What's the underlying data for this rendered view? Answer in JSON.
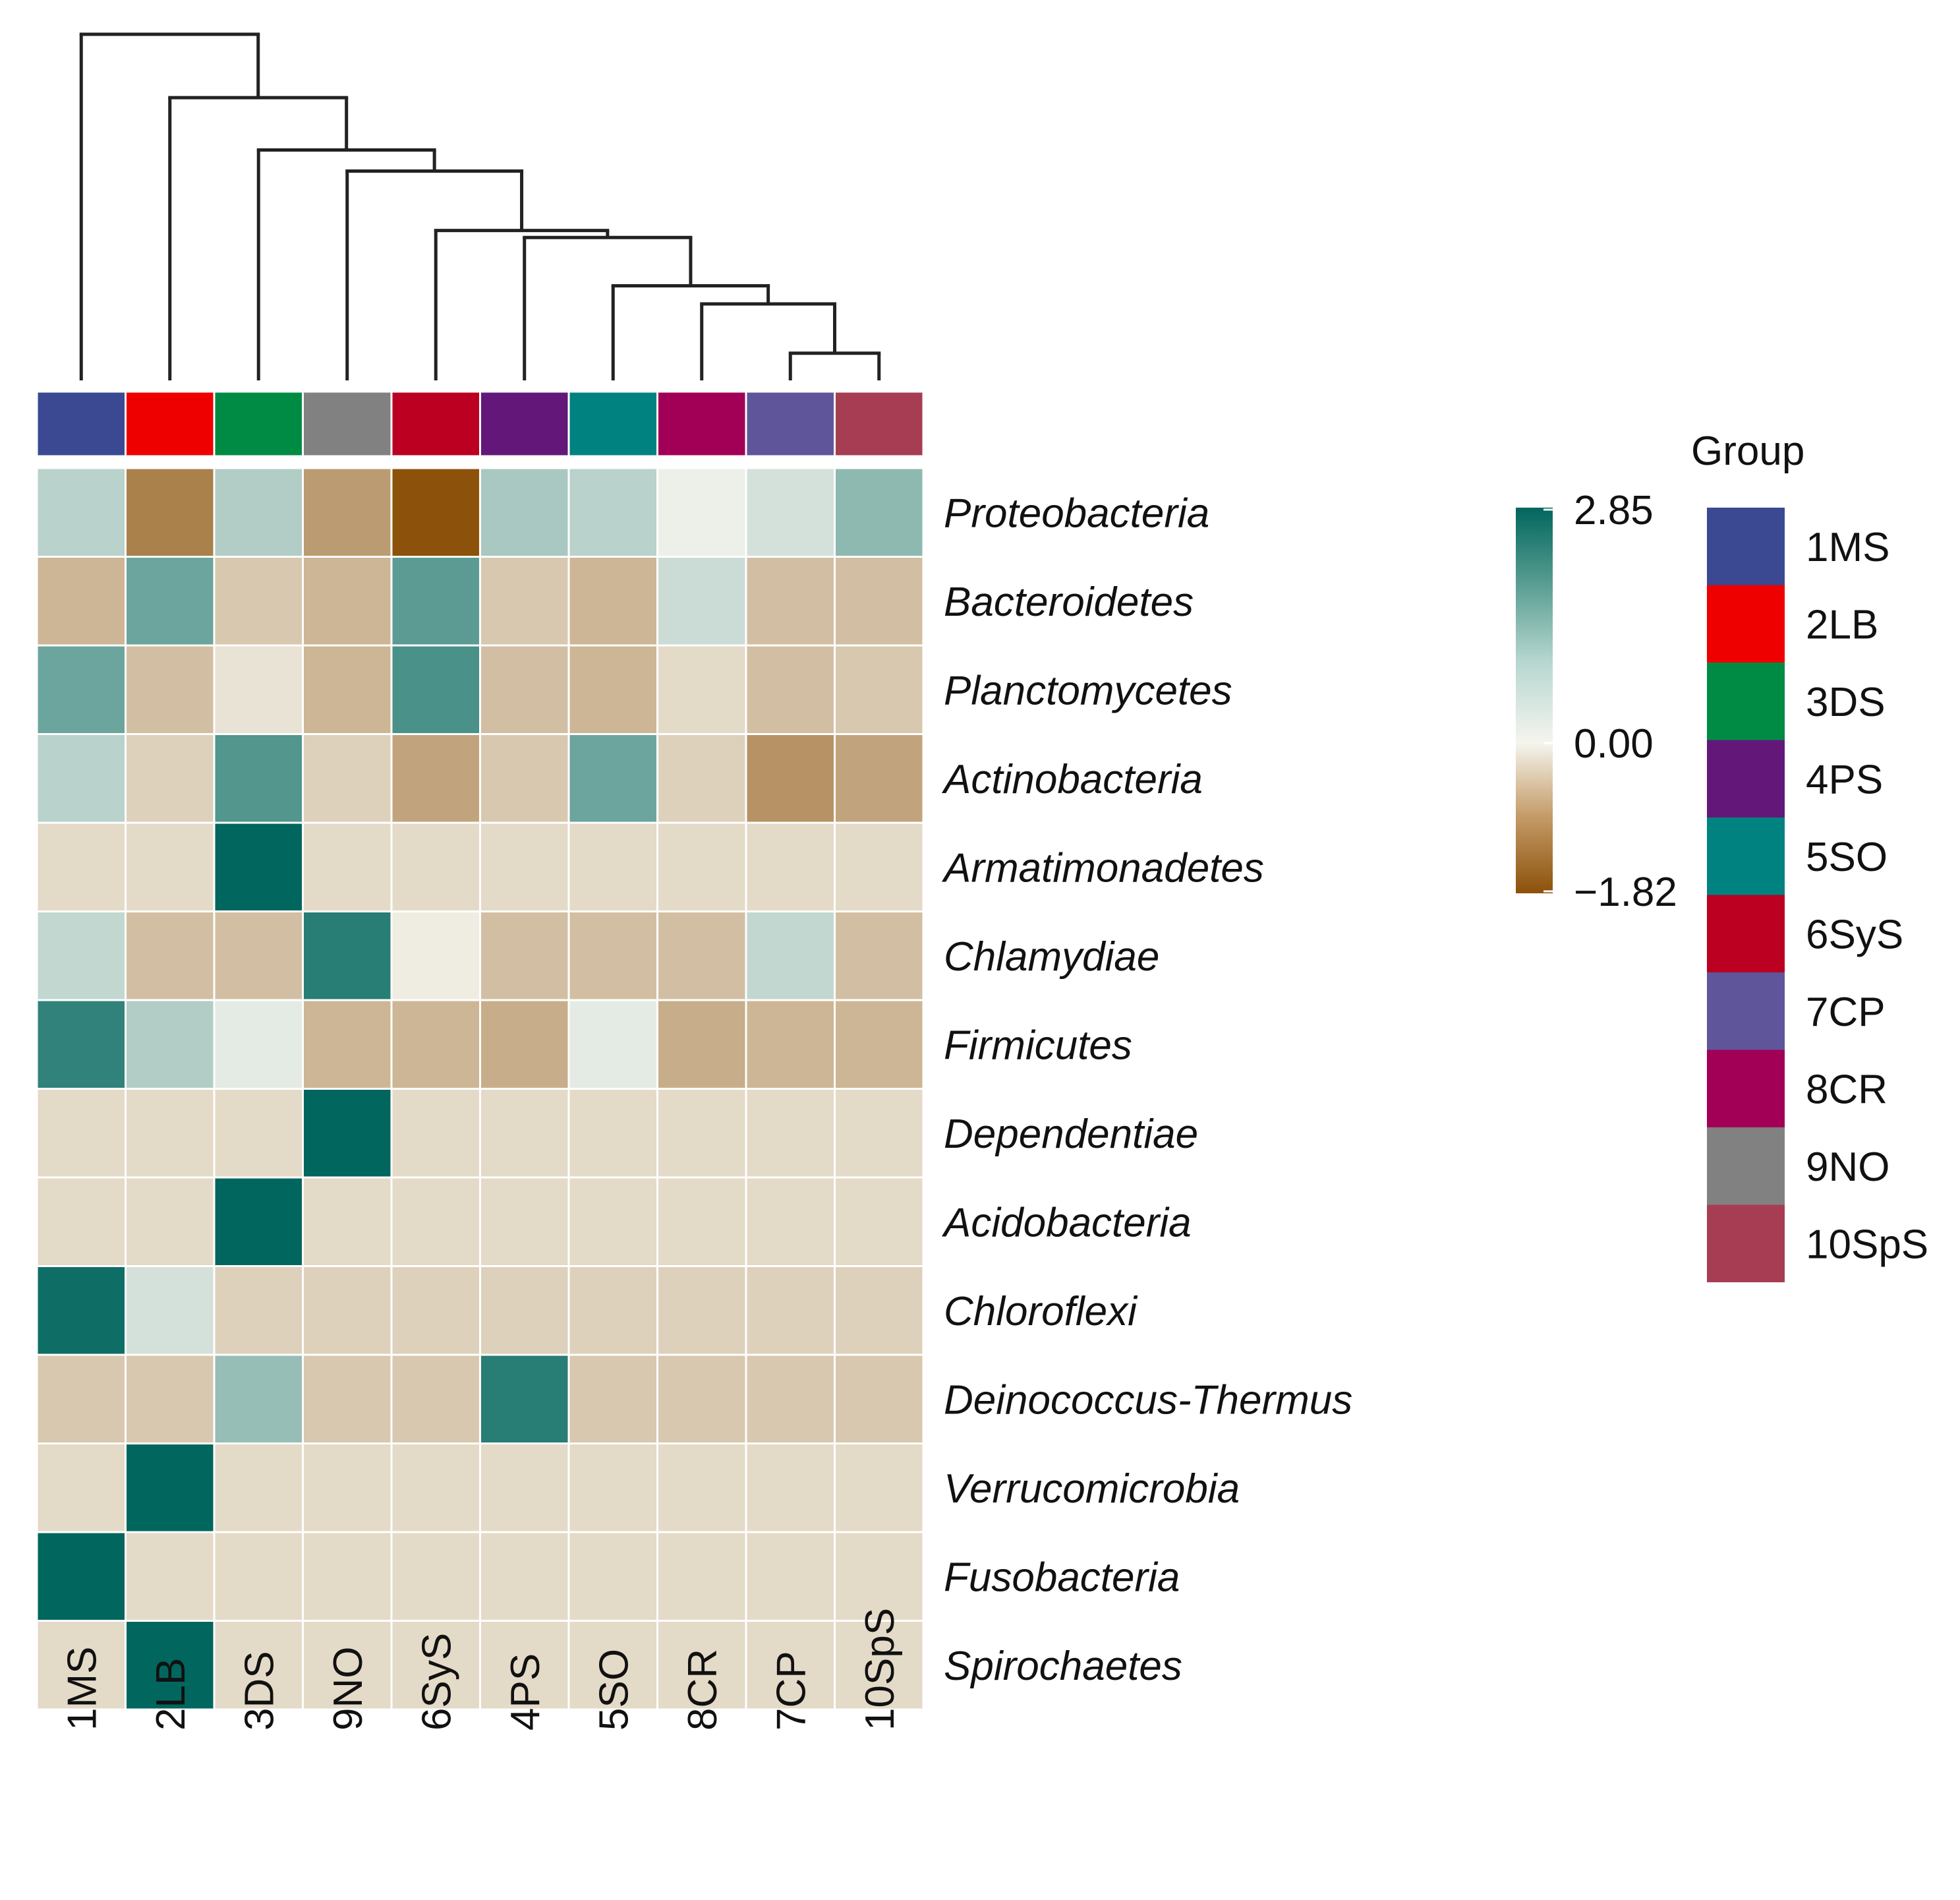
{
  "chart_data": {
    "type": "heatmap",
    "title": "",
    "rows": [
      "Proteobacteria",
      "Bacteroidetes",
      "Planctomycetes",
      "Actinobacteria",
      "Armatimonadetes",
      "Chlamydiae",
      "Firmicutes",
      "Dependentiae",
      "Acidobacteria",
      "Chloroflexi",
      "Deinococcus-Thermus",
      "Verrucomicrobia",
      "Fusobacteria",
      "Spirochaetes"
    ],
    "columns": [
      "1MS",
      "2LB",
      "3DS",
      "9NO",
      "6SyS",
      "4PS",
      "5SO",
      "8CR",
      "7CP",
      "10SpS"
    ],
    "values": [
      [
        0.7,
        -1.3,
        0.8,
        -1.0,
        -1.82,
        0.9,
        0.7,
        0.1,
        0.4,
        1.2
      ],
      [
        -0.7,
        1.6,
        -0.5,
        -0.7,
        1.8,
        -0.5,
        -0.7,
        0.5,
        -0.6,
        -0.6
      ],
      [
        1.6,
        -0.6,
        -0.2,
        -0.7,
        2.0,
        -0.6,
        -0.7,
        -0.3,
        -0.6,
        -0.5
      ],
      [
        0.7,
        -0.4,
        1.9,
        -0.4,
        -0.9,
        -0.5,
        1.6,
        -0.4,
        -1.1,
        -0.9
      ],
      [
        -0.3,
        -0.3,
        2.85,
        -0.3,
        -0.3,
        -0.3,
        -0.3,
        -0.3,
        -0.3,
        -0.3
      ],
      [
        0.6,
        -0.6,
        -0.6,
        2.4,
        -0.1,
        -0.6,
        -0.6,
        -0.6,
        0.6,
        -0.6
      ],
      [
        2.3,
        0.8,
        0.2,
        -0.7,
        -0.7,
        -0.8,
        0.2,
        -0.8,
        -0.7,
        -0.7
      ],
      [
        -0.3,
        -0.3,
        -0.3,
        2.85,
        -0.3,
        -0.3,
        -0.3,
        -0.3,
        -0.3,
        -0.3
      ],
      [
        -0.3,
        -0.3,
        2.85,
        -0.3,
        -0.3,
        -0.3,
        -0.3,
        -0.3,
        -0.3,
        -0.3
      ],
      [
        2.7,
        0.4,
        -0.4,
        -0.4,
        -0.4,
        -0.4,
        -0.4,
        -0.4,
        -0.4,
        -0.4
      ],
      [
        -0.5,
        -0.5,
        1.1,
        -0.5,
        -0.5,
        2.4,
        -0.5,
        -0.5,
        -0.5,
        -0.5
      ],
      [
        -0.3,
        2.85,
        -0.3,
        -0.3,
        -0.3,
        -0.3,
        -0.3,
        -0.3,
        -0.3,
        -0.3
      ],
      [
        2.85,
        -0.3,
        -0.3,
        -0.3,
        -0.3,
        -0.3,
        -0.3,
        -0.3,
        -0.3,
        -0.3
      ],
      [
        -0.3,
        2.85,
        -0.3,
        -0.3,
        -0.3,
        -0.3,
        -0.3,
        -0.3,
        -0.3,
        -0.3
      ]
    ],
    "color_scale": {
      "min": -1.82,
      "max": 2.85,
      "tick_labels": [
        "2.85",
        "0.00",
        "−1.82"
      ],
      "low_color": "#8c510a",
      "mid_color": "#f5f5ee",
      "high_color": "#01665e"
    },
    "column_dendrogram": "(1MS,(2LB,(3DS,(9NO,(6SyS,(4PS,(5SO,(8CR,(7CP,10SpS)))))))))",
    "group_annotation": {
      "title": "Group",
      "column_colors": {
        "1MS": "#3b4992",
        "2LB": "#ee0000",
        "3DS": "#008b45",
        "9NO": "#808180",
        "6SyS": "#bb0021",
        "4PS": "#631879",
        "5SO": "#008280",
        "8CR": "#a20056",
        "7CP": "#5f559b",
        "10SpS": "#a73d52"
      },
      "legend": [
        {
          "label": "1MS",
          "color": "#3b4992"
        },
        {
          "label": "2LB",
          "color": "#ee0000"
        },
        {
          "label": "3DS",
          "color": "#008b45"
        },
        {
          "label": "4PS",
          "color": "#631879"
        },
        {
          "label": "5SO",
          "color": "#008280"
        },
        {
          "label": "6SyS",
          "color": "#bb0021"
        },
        {
          "label": "7CP",
          "color": "#5f559b"
        },
        {
          "label": "8CR",
          "color": "#a20056"
        },
        {
          "label": "9NO",
          "color": "#808180"
        },
        {
          "label": "10SpS",
          "color": "#a73d52"
        }
      ]
    }
  }
}
